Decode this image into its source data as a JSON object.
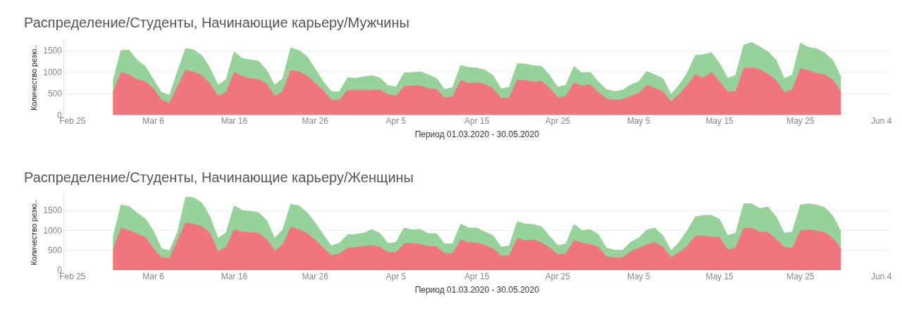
{
  "chart_data": [
    {
      "type": "area",
      "title": "Распределение/Студенты, Начинающие карьеру/Мужчины",
      "xlabel": "Период 01.03.2020 - 30.05.2020",
      "ylabel": "Количество резю..",
      "stacked": true,
      "grid": "y",
      "x": [
        "2020-03-01",
        "2020-03-02",
        "2020-03-03",
        "2020-03-04",
        "2020-03-05",
        "2020-03-06",
        "2020-03-07",
        "2020-03-08",
        "2020-03-09",
        "2020-03-10",
        "2020-03-11",
        "2020-03-12",
        "2020-03-13",
        "2020-03-14",
        "2020-03-15",
        "2020-03-16",
        "2020-03-17",
        "2020-03-18",
        "2020-03-19",
        "2020-03-20",
        "2020-03-21",
        "2020-03-22",
        "2020-03-23",
        "2020-03-24",
        "2020-03-25",
        "2020-03-26",
        "2020-03-27",
        "2020-03-28",
        "2020-03-29",
        "2020-03-30",
        "2020-03-31",
        "2020-04-01",
        "2020-04-02",
        "2020-04-03",
        "2020-04-04",
        "2020-04-05",
        "2020-04-06",
        "2020-04-07",
        "2020-04-08",
        "2020-04-09",
        "2020-04-10",
        "2020-04-11",
        "2020-04-12",
        "2020-04-13",
        "2020-04-14",
        "2020-04-15",
        "2020-04-16",
        "2020-04-17",
        "2020-04-18",
        "2020-04-19",
        "2020-04-20",
        "2020-04-21",
        "2020-04-22",
        "2020-04-23",
        "2020-04-24",
        "2020-04-25",
        "2020-04-26",
        "2020-04-27",
        "2020-04-28",
        "2020-04-29",
        "2020-04-30",
        "2020-05-01",
        "2020-05-02",
        "2020-05-03",
        "2020-05-04",
        "2020-05-05",
        "2020-05-06",
        "2020-05-07",
        "2020-05-08",
        "2020-05-09",
        "2020-05-10",
        "2020-05-11",
        "2020-05-12",
        "2020-05-13",
        "2020-05-14",
        "2020-05-15",
        "2020-05-16",
        "2020-05-17",
        "2020-05-18",
        "2020-05-19",
        "2020-05-20",
        "2020-05-21",
        "2020-05-22",
        "2020-05-23",
        "2020-05-24",
        "2020-05-25",
        "2020-05-26",
        "2020-05-27",
        "2020-05-28",
        "2020-05-29",
        "2020-05-30"
      ],
      "series": [
        {
          "color": "#f1757f",
          "values": [
            510,
            1000,
            940,
            830,
            780,
            620,
            350,
            280,
            670,
            1050,
            1000,
            930,
            730,
            440,
            530,
            1000,
            900,
            860,
            830,
            730,
            440,
            550,
            1050,
            1010,
            920,
            750,
            570,
            350,
            350,
            580,
            580,
            580,
            580,
            590,
            480,
            440,
            670,
            680,
            680,
            620,
            600,
            400,
            430,
            810,
            740,
            760,
            720,
            620,
            390,
            400,
            820,
            810,
            770,
            790,
            630,
            410,
            440,
            750,
            680,
            710,
            530,
            380,
            350,
            360,
            440,
            510,
            700,
            620,
            550,
            310,
            480,
            700,
            940,
            870,
            1000,
            780,
            540,
            550,
            1090,
            1110,
            1060,
            960,
            810,
            530,
            590,
            1090,
            1040,
            970,
            940,
            820,
            540
          ]
        },
        {
          "color": "#96d39b",
          "values": [
            270,
            510,
            580,
            450,
            360,
            210,
            180,
            180,
            350,
            510,
            520,
            460,
            370,
            260,
            300,
            480,
            420,
            430,
            430,
            320,
            260,
            300,
            520,
            500,
            450,
            330,
            210,
            200,
            190,
            290,
            280,
            310,
            340,
            280,
            210,
            210,
            310,
            310,
            330,
            320,
            260,
            200,
            210,
            350,
            370,
            340,
            330,
            300,
            220,
            250,
            380,
            380,
            380,
            350,
            290,
            240,
            260,
            390,
            300,
            290,
            250,
            220,
            200,
            220,
            260,
            270,
            320,
            320,
            300,
            170,
            220,
            280,
            450,
            540,
            460,
            430,
            320,
            380,
            550,
            590,
            530,
            520,
            470,
            320,
            350,
            590,
            540,
            580,
            510,
            460,
            350
          ]
        }
      ],
      "xlim": [
        "2020-02-24",
        "2020-06-05"
      ],
      "xticks": [
        {
          "value": "2020-02-25",
          "label": "Feb 25"
        },
        {
          "value": "2020-03-06",
          "label": "Mar 6"
        },
        {
          "value": "2020-03-16",
          "label": "Mar 16"
        },
        {
          "value": "2020-03-26",
          "label": "Mar 26"
        },
        {
          "value": "2020-04-05",
          "label": "Apr 5"
        },
        {
          "value": "2020-04-15",
          "label": "Apr 15"
        },
        {
          "value": "2020-04-25",
          "label": "Apr 25"
        },
        {
          "value": "2020-05-05",
          "label": "May 5"
        },
        {
          "value": "2020-05-15",
          "label": "May 15"
        },
        {
          "value": "2020-05-25",
          "label": "May 25"
        },
        {
          "value": "2020-06-04",
          "label": "Jun 4"
        }
      ],
      "ylim": [
        0,
        1750
      ],
      "yticks": [
        0,
        500,
        1000,
        1500
      ]
    },
    {
      "type": "area",
      "title": "Распределение/Студенты, Начинающие карьеру/Женщины",
      "xlabel": "Период 01.03.2020 - 30.05.2020",
      "ylabel": "Количество резю..",
      "stacked": true,
      "grid": "y",
      "x": [
        "2020-03-01",
        "2020-03-02",
        "2020-03-03",
        "2020-03-04",
        "2020-03-05",
        "2020-03-06",
        "2020-03-07",
        "2020-03-08",
        "2020-03-09",
        "2020-03-10",
        "2020-03-11",
        "2020-03-12",
        "2020-03-13",
        "2020-03-14",
        "2020-03-15",
        "2020-03-16",
        "2020-03-17",
        "2020-03-18",
        "2020-03-19",
        "2020-03-20",
        "2020-03-21",
        "2020-03-22",
        "2020-03-23",
        "2020-03-24",
        "2020-03-25",
        "2020-03-26",
        "2020-03-27",
        "2020-03-28",
        "2020-03-29",
        "2020-03-30",
        "2020-03-31",
        "2020-04-01",
        "2020-04-02",
        "2020-04-03",
        "2020-04-04",
        "2020-04-05",
        "2020-04-06",
        "2020-04-07",
        "2020-04-08",
        "2020-04-09",
        "2020-04-10",
        "2020-04-11",
        "2020-04-12",
        "2020-04-13",
        "2020-04-14",
        "2020-04-15",
        "2020-04-16",
        "2020-04-17",
        "2020-04-18",
        "2020-04-19",
        "2020-04-20",
        "2020-04-21",
        "2020-04-22",
        "2020-04-23",
        "2020-04-24",
        "2020-04-25",
        "2020-04-26",
        "2020-04-27",
        "2020-04-28",
        "2020-04-29",
        "2020-04-30",
        "2020-05-01",
        "2020-05-02",
        "2020-05-03",
        "2020-05-04",
        "2020-05-05",
        "2020-05-06",
        "2020-05-07",
        "2020-05-08",
        "2020-05-09",
        "2020-05-10",
        "2020-05-11",
        "2020-05-12",
        "2020-05-13",
        "2020-05-14",
        "2020-05-15",
        "2020-05-16",
        "2020-05-17",
        "2020-05-18",
        "2020-05-19",
        "2020-05-20",
        "2020-05-21",
        "2020-05-22",
        "2020-05-23",
        "2020-05-24",
        "2020-05-25",
        "2020-05-26",
        "2020-05-27",
        "2020-05-28",
        "2020-05-29",
        "2020-05-30"
      ],
      "series": [
        {
          "color": "#f1757f",
          "values": [
            490,
            1060,
            1000,
            910,
            830,
            550,
            320,
            290,
            760,
            1190,
            1160,
            1100,
            930,
            470,
            580,
            1020,
            960,
            950,
            930,
            780,
            490,
            640,
            1080,
            1020,
            930,
            760,
            560,
            370,
            410,
            560,
            570,
            600,
            620,
            580,
            450,
            440,
            670,
            670,
            650,
            600,
            590,
            420,
            420,
            760,
            690,
            690,
            630,
            540,
            360,
            370,
            800,
            740,
            760,
            690,
            560,
            390,
            410,
            740,
            680,
            650,
            580,
            340,
            310,
            310,
            470,
            550,
            640,
            700,
            580,
            320,
            440,
            600,
            860,
            860,
            830,
            830,
            510,
            560,
            1050,
            1060,
            960,
            950,
            780,
            580,
            550,
            1000,
            1010,
            990,
            950,
            810,
            540
          ]
        },
        {
          "color": "#96d39b",
          "values": [
            320,
            580,
            600,
            530,
            460,
            440,
            220,
            200,
            200,
            650,
            660,
            590,
            410,
            330,
            360,
            600,
            540,
            530,
            520,
            470,
            310,
            380,
            580,
            600,
            520,
            430,
            330,
            240,
            270,
            330,
            330,
            330,
            400,
            350,
            220,
            260,
            390,
            340,
            380,
            320,
            330,
            240,
            240,
            400,
            370,
            370,
            330,
            330,
            220,
            240,
            420,
            420,
            390,
            400,
            290,
            230,
            250,
            410,
            320,
            370,
            320,
            220,
            190,
            190,
            230,
            260,
            370,
            360,
            290,
            170,
            260,
            390,
            480,
            520,
            550,
            450,
            360,
            370,
            620,
            610,
            590,
            640,
            560,
            350,
            410,
            640,
            660,
            650,
            620,
            560,
            430
          ]
        }
      ],
      "xlim": [
        "2020-02-24",
        "2020-06-05"
      ],
      "xticks": [
        {
          "value": "2020-02-25",
          "label": "Feb 25"
        },
        {
          "value": "2020-03-06",
          "label": "Mar 6"
        },
        {
          "value": "2020-03-16",
          "label": "Mar 16"
        },
        {
          "value": "2020-03-26",
          "label": "Mar 26"
        },
        {
          "value": "2020-04-05",
          "label": "Apr 5"
        },
        {
          "value": "2020-04-15",
          "label": "Apr 15"
        },
        {
          "value": "2020-04-25",
          "label": "Apr 25"
        },
        {
          "value": "2020-05-05",
          "label": "May 5"
        },
        {
          "value": "2020-05-15",
          "label": "May 15"
        },
        {
          "value": "2020-05-25",
          "label": "May 25"
        },
        {
          "value": "2020-06-04",
          "label": "Jun 4"
        }
      ],
      "ylim": [
        0,
        1900
      ],
      "yticks": [
        0,
        500,
        1000,
        1500
      ]
    }
  ]
}
